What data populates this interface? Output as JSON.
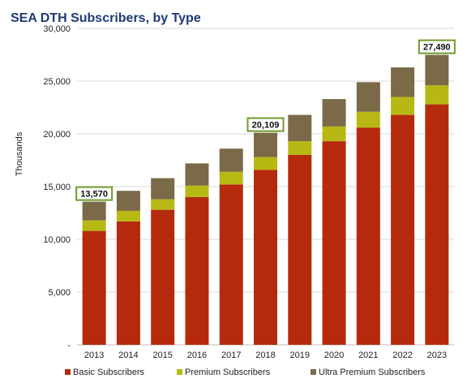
{
  "chart_data": {
    "type": "bar",
    "stacked": true,
    "title": "SEA DTH Subscribers, by Type",
    "ylabel": "Thousands",
    "xlabel": "",
    "ylim": [
      0,
      30000
    ],
    "yticks": [
      0,
      5000,
      10000,
      15000,
      20000,
      25000,
      30000
    ],
    "ytick_labels": [
      "-",
      "5,000",
      "10,000",
      "15,000",
      "20,000",
      "25,000",
      "30,000"
    ],
    "grid": true,
    "legend_position": "bottom",
    "categories": [
      "2013",
      "2014",
      "2015",
      "2016",
      "2017",
      "2018",
      "2019",
      "2020",
      "2021",
      "2022",
      "2023"
    ],
    "series": [
      {
        "name": "Basic Subscribers",
        "color": "#b52a0c",
        "values": [
          10800,
          11700,
          12800,
          14000,
          15200,
          16600,
          18000,
          19300,
          20600,
          21800,
          22800
        ]
      },
      {
        "name": "Premium Subscribers",
        "color": "#b8b815",
        "values": [
          1000,
          1000,
          1000,
          1100,
          1200,
          1200,
          1300,
          1400,
          1500,
          1700,
          1800
        ]
      },
      {
        "name": "Ultra Premium Subscribers",
        "color": "#7a6a48",
        "values": [
          1770,
          1900,
          2000,
          2100,
          2200,
          2309,
          2500,
          2600,
          2800,
          2800,
          2890
        ]
      }
    ],
    "annotations": [
      {
        "category": "2013",
        "text": "13,570"
      },
      {
        "category": "2018",
        "text": "20,109"
      },
      {
        "category": "2023",
        "text": "27,490"
      }
    ],
    "annotation_border_color": "#6f9a2a"
  }
}
